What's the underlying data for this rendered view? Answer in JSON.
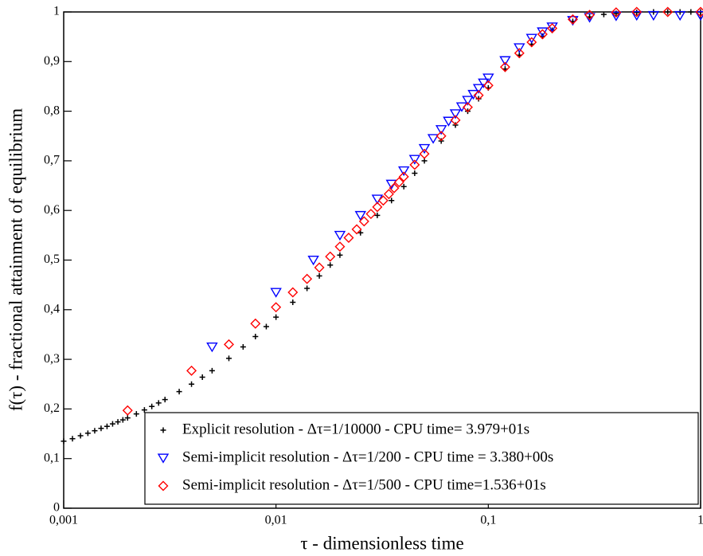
{
  "chart_data": {
    "type": "scatter",
    "xlabel": "τ - dimensionless time",
    "ylabel": "f(τ) - fractional attainment of equilibrium",
    "xscale": "log",
    "xlim": [
      0.001,
      1
    ],
    "xticks": [
      {
        "value": 0.001,
        "label": "0,001"
      },
      {
        "value": 0.01,
        "label": "0,01"
      },
      {
        "value": 0.1,
        "label": "0,1"
      },
      1
    ],
    "ylim": [
      0,
      1
    ],
    "yticks": [
      0,
      {
        "value": 0.1,
        "label": "0,1"
      },
      {
        "value": 0.2,
        "label": "0,2"
      },
      {
        "value": 0.3,
        "label": "0,3"
      },
      {
        "value": 0.4,
        "label": "0,4"
      },
      {
        "value": 0.5,
        "label": "0,5"
      },
      {
        "value": 0.6,
        "label": "0,6"
      },
      {
        "value": 0.7,
        "label": "0,7"
      },
      {
        "value": 0.8,
        "label": "0,8"
      },
      {
        "value": 0.9,
        "label": "0,9"
      },
      1
    ],
    "grid": false,
    "legend": "lower right",
    "series": [
      {
        "name": "Explicit resolution - Δτ=1/10000 - CPU time= 3.979+01s",
        "color": "#000000",
        "marker": "plus",
        "x": [
          0.001,
          0.0011,
          0.0012,
          0.0013,
          0.0014,
          0.0015,
          0.0016,
          0.0017,
          0.0018,
          0.0019,
          0.002,
          0.0022,
          0.0024,
          0.0026,
          0.0028,
          0.003,
          0.0035,
          0.004,
          0.0045,
          0.005,
          0.006,
          0.007,
          0.008,
          0.009,
          0.01,
          0.012,
          0.014,
          0.016,
          0.018,
          0.02,
          0.025,
          0.03,
          0.035,
          0.04,
          0.045,
          0.05,
          0.06,
          0.07,
          0.08,
          0.09,
          0.1,
          0.12,
          0.14,
          0.16,
          0.18,
          0.2,
          0.25,
          0.3,
          0.35,
          0.4,
          0.5,
          0.6,
          0.7,
          0.8,
          0.9,
          1
        ],
        "values": [
          0.135,
          0.14,
          0.146,
          0.151,
          0.156,
          0.161,
          0.165,
          0.17,
          0.174,
          0.178,
          0.182,
          0.19,
          0.198,
          0.205,
          0.212,
          0.219,
          0.235,
          0.25,
          0.264,
          0.277,
          0.302,
          0.325,
          0.346,
          0.366,
          0.385,
          0.415,
          0.443,
          0.468,
          0.49,
          0.51,
          0.555,
          0.59,
          0.62,
          0.648,
          0.675,
          0.7,
          0.74,
          0.772,
          0.8,
          0.825,
          0.847,
          0.885,
          0.913,
          0.935,
          0.951,
          0.963,
          0.981,
          0.99,
          0.995,
          0.997,
          0.999,
          1,
          1,
          1,
          1,
          1
        ]
      },
      {
        "name": "Semi-implicit resolution - Δτ=1/200 - CPU time = 3.380+00s",
        "color": "#0000ff",
        "marker": "triangle-down",
        "x": [
          0.005,
          0.01,
          0.015,
          0.02,
          0.025,
          0.03,
          0.035,
          0.04,
          0.045,
          0.05,
          0.055,
          0.06,
          0.065,
          0.07,
          0.075,
          0.08,
          0.085,
          0.09,
          0.095,
          0.1,
          0.12,
          0.14,
          0.16,
          0.18,
          0.2,
          0.25,
          0.3,
          0.4,
          0.5,
          0.6,
          0.8,
          1
        ],
        "values": [
          0.325,
          0.435,
          0.5,
          0.55,
          0.59,
          0.623,
          0.653,
          0.68,
          0.703,
          0.725,
          0.745,
          0.763,
          0.78,
          0.795,
          0.809,
          0.822,
          0.834,
          0.846,
          0.857,
          0.867,
          0.902,
          0.928,
          0.947,
          0.96,
          0.97,
          0.983,
          0.989,
          0.992,
          0.993,
          0.993,
          0.993,
          0.993
        ]
      },
      {
        "name": "Semi-implicit resolution - Δτ=1/500 - CPU time=1.536+01s",
        "color": "#ff0000",
        "marker": "diamond",
        "x": [
          0.002,
          0.004,
          0.006,
          0.008,
          0.01,
          0.012,
          0.014,
          0.016,
          0.018,
          0.02,
          0.022,
          0.024,
          0.026,
          0.028,
          0.03,
          0.032,
          0.034,
          0.036,
          0.038,
          0.04,
          0.045,
          0.05,
          0.06,
          0.07,
          0.08,
          0.09,
          0.1,
          0.12,
          0.14,
          0.16,
          0.18,
          0.2,
          0.25,
          0.3,
          0.4,
          0.5,
          0.7,
          1
        ],
        "values": [
          0.197,
          0.277,
          0.33,
          0.372,
          0.405,
          0.435,
          0.462,
          0.485,
          0.507,
          0.527,
          0.545,
          0.562,
          0.578,
          0.593,
          0.607,
          0.62,
          0.633,
          0.645,
          0.657,
          0.668,
          0.692,
          0.714,
          0.75,
          0.782,
          0.808,
          0.832,
          0.852,
          0.889,
          0.917,
          0.939,
          0.955,
          0.967,
          0.985,
          0.994,
          0.999,
          1,
          1,
          1
        ]
      }
    ]
  }
}
